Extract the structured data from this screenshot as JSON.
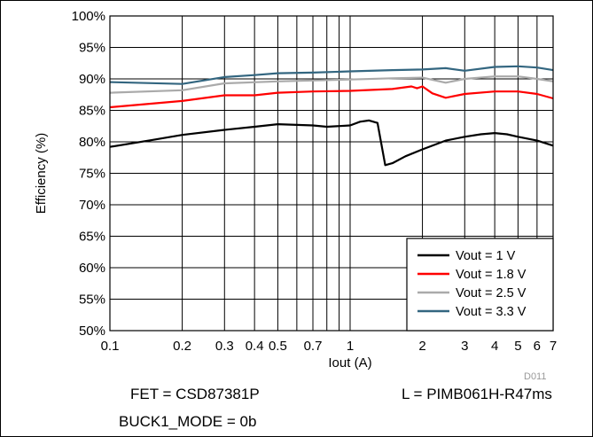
{
  "chart_data": {
    "type": "line",
    "xscale": "log",
    "xlim": [
      0.1,
      7
    ],
    "ylim": [
      50,
      100
    ],
    "grid": true,
    "xlabel": "Iout (A)",
    "ylabel": "Efficiency (%)",
    "legend_position": "bottom-right",
    "x_ticks": [
      0.1,
      0.2,
      0.3,
      0.4,
      0.5,
      0.7,
      1,
      2,
      3,
      4,
      5,
      6,
      7
    ],
    "x_tick_labels": [
      "0.1",
      "0.2",
      "0.3",
      "0.4",
      "0.5",
      "0.7",
      "1",
      "2",
      "3",
      "4",
      "5",
      "6",
      "7"
    ],
    "y_ticks": [
      50,
      55,
      60,
      65,
      70,
      75,
      80,
      85,
      90,
      95,
      100
    ],
    "y_tick_labels": [
      "50%",
      "55%",
      "60%",
      "65%",
      "70%",
      "75%",
      "80%",
      "85%",
      "90%",
      "95%",
      "100%"
    ],
    "series": [
      {
        "name": "Vout = 1 V",
        "color": "#000000",
        "x": [
          0.1,
          0.15,
          0.2,
          0.3,
          0.4,
          0.5,
          0.7,
          0.8,
          1.0,
          1.1,
          1.2,
          1.3,
          1.4,
          1.5,
          1.7,
          2.0,
          2.5,
          3.0,
          3.5,
          4.0,
          4.5,
          5.0,
          6.0,
          7.0
        ],
        "y": [
          79.2,
          80.3,
          81.1,
          81.9,
          82.4,
          82.8,
          82.6,
          82.4,
          82.6,
          83.2,
          83.4,
          83.0,
          76.3,
          76.6,
          77.7,
          78.8,
          80.2,
          80.8,
          81.2,
          81.4,
          81.2,
          80.8,
          80.2,
          79.4
        ]
      },
      {
        "name": "Vout = 1.8 V",
        "color": "#ff0000",
        "x": [
          0.1,
          0.2,
          0.3,
          0.4,
          0.5,
          0.7,
          1.0,
          1.5,
          1.8,
          1.9,
          2.0,
          2.2,
          2.5,
          3.0,
          4.0,
          5.0,
          6.0,
          7.0
        ],
        "y": [
          85.5,
          86.5,
          87.4,
          87.4,
          87.8,
          88.0,
          88.1,
          88.4,
          88.8,
          88.5,
          88.8,
          87.7,
          87.0,
          87.6,
          88.0,
          88.0,
          87.6,
          86.9
        ]
      },
      {
        "name": "Vout = 2.5 V",
        "color": "#aaaaaa",
        "x": [
          0.1,
          0.2,
          0.3,
          0.5,
          1.0,
          1.5,
          2.0,
          2.5,
          3.0,
          4.0,
          5.0,
          6.0,
          7.0
        ],
        "y": [
          87.8,
          88.2,
          89.3,
          89.6,
          89.9,
          90.1,
          90.2,
          89.4,
          90.0,
          90.4,
          90.4,
          90.0,
          89.6
        ]
      },
      {
        "name": "Vout = 3.3 V",
        "color": "#336680",
        "x": [
          0.1,
          0.2,
          0.3,
          0.4,
          0.5,
          0.7,
          1.0,
          1.5,
          2.0,
          2.5,
          3.0,
          4.0,
          5.0,
          6.0,
          7.0
        ],
        "y": [
          89.5,
          89.2,
          90.3,
          90.6,
          90.9,
          91.0,
          91.2,
          91.4,
          91.5,
          91.7,
          91.3,
          91.9,
          92.0,
          91.8,
          91.4
        ]
      }
    ]
  },
  "figure_id": "D011",
  "notes": {
    "fet": "FET = CSD87381P",
    "inductor": "L = PIMB061H-R47ms",
    "mode": "BUCK1_MODE = 0b"
  }
}
